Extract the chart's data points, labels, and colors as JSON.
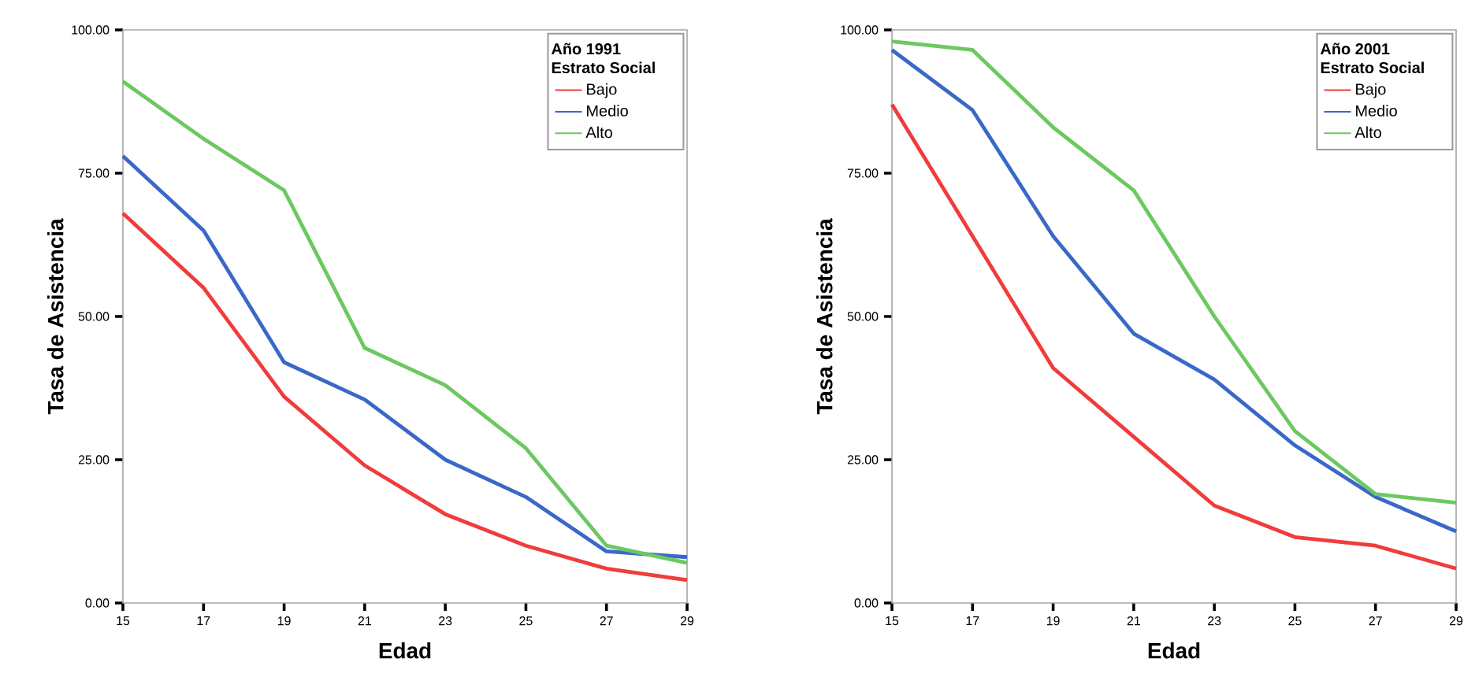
{
  "chart_data": [
    {
      "type": "line",
      "legend_title": "Año 1991 Estrato Social",
      "xlabel": "Edad",
      "ylabel": "Tasa de Asistencia",
      "x": [
        15,
        17,
        19,
        21,
        23,
        25,
        27,
        29
      ],
      "xlim": [
        15,
        29
      ],
      "xticks": [
        15,
        17,
        19,
        21,
        23,
        25,
        27,
        29
      ],
      "ylim": [
        0,
        100
      ],
      "yticks": [
        {
          "value": 0,
          "label": "0.00"
        },
        {
          "value": 25,
          "label": "25.00"
        },
        {
          "value": 50,
          "label": "50.00"
        },
        {
          "value": 75,
          "label": "75.00"
        },
        {
          "value": 100,
          "label": "100.00"
        }
      ],
      "legend": "top right",
      "grid": false,
      "marker": "none",
      "line_style": "solid",
      "series": [
        {
          "name": "Bajo",
          "color": "#f03c3c",
          "values": [
            68,
            55,
            36,
            24,
            15.5,
            10,
            6,
            4
          ]
        },
        {
          "name": "Medio",
          "color": "#3a68c8",
          "values": [
            78,
            65,
            42,
            35.5,
            25,
            18.5,
            9,
            8
          ]
        },
        {
          "name": "Alto",
          "color": "#6cc860",
          "values": [
            91,
            81,
            72,
            44.5,
            38,
            27,
            10,
            7
          ]
        }
      ]
    },
    {
      "type": "line",
      "legend_title": "Año 2001 Estrato Social",
      "xlabel": "Edad",
      "ylabel": "Tasa de Asistencia",
      "x": [
        15,
        17,
        19,
        21,
        23,
        25,
        27,
        29
      ],
      "xlim": [
        15,
        29
      ],
      "xticks": [
        15,
        17,
        19,
        21,
        23,
        25,
        27,
        29
      ],
      "ylim": [
        0,
        100
      ],
      "yticks": [
        {
          "value": 0,
          "label": "0.00"
        },
        {
          "value": 25,
          "label": "25.00"
        },
        {
          "value": 50,
          "label": "50.00"
        },
        {
          "value": 75,
          "label": "75.00"
        },
        {
          "value": 100,
          "label": "100.00"
        }
      ],
      "legend": "top right",
      "grid": false,
      "marker": "none",
      "line_style": "solid",
      "series": [
        {
          "name": "Bajo",
          "color": "#f03c3c",
          "values": [
            87,
            64,
            41,
            29,
            17,
            11.5,
            10,
            6
          ]
        },
        {
          "name": "Medio",
          "color": "#3a68c8",
          "values": [
            96.5,
            86,
            64,
            47,
            39,
            27.5,
            18.5,
            12.5
          ]
        },
        {
          "name": "Alto",
          "color": "#6cc860",
          "values": [
            98,
            96.5,
            83,
            72,
            50,
            30,
            19,
            17.5
          ]
        }
      ]
    }
  ]
}
